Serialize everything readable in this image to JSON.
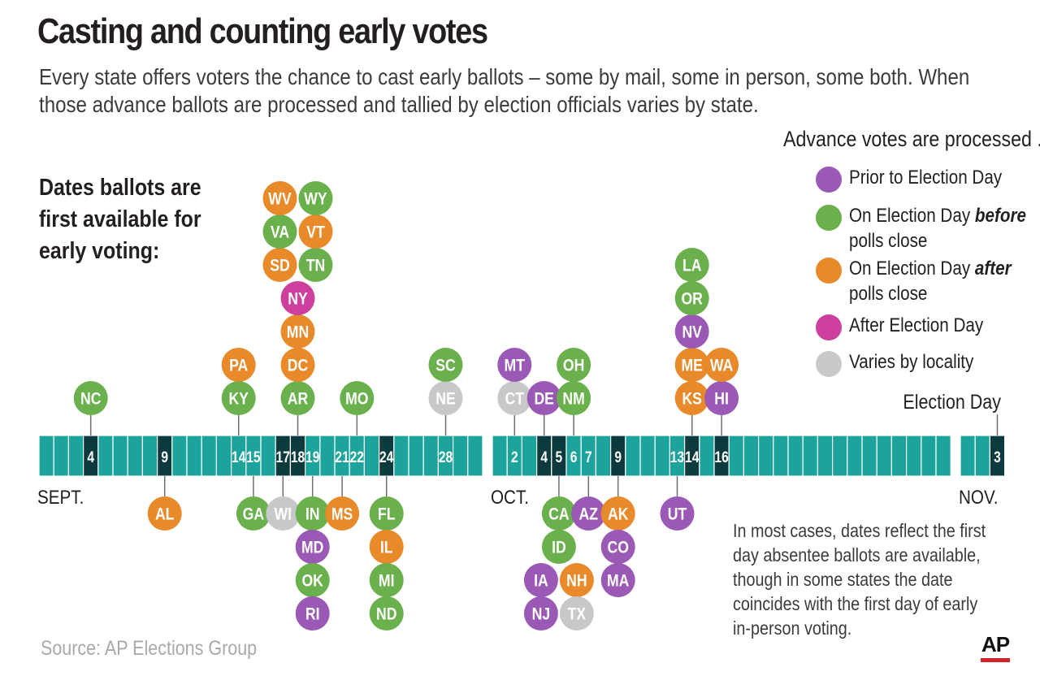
{
  "title": "Casting and counting early votes",
  "subtitle": "Every state offers voters the chance to cast early ballots – some by mail, some in person, some both. When those advance ballots are processed and tallied by election officials varies by state.",
  "left_heading": "Dates ballots are first available for early voting:",
  "legend": {
    "title": "Advance votes are processed ...",
    "items": [
      {
        "key": "prior",
        "parts": [
          {
            "t": "Prior to Election Day"
          }
        ],
        "color": "#9b59b6"
      },
      {
        "key": "before",
        "parts": [
          {
            "t": "On Election Day "
          },
          {
            "t": "before",
            "em": true
          },
          {
            "t": " polls close"
          }
        ],
        "color": "#6ab04c"
      },
      {
        "key": "after",
        "parts": [
          {
            "t": "On Election Day "
          },
          {
            "t": "after",
            "em": true
          },
          {
            "t": " polls close"
          }
        ],
        "color": "#e8892a"
      },
      {
        "key": "afterday",
        "parts": [
          {
            "t": "After Election Day"
          }
        ],
        "color": "#cc3f9c"
      },
      {
        "key": "varies",
        "parts": [
          {
            "t": "Varies by locality"
          }
        ],
        "color": "#c7c8ca"
      }
    ]
  },
  "colors": {
    "prior": "#9b59b6",
    "before": "#6ab04c",
    "after": "#e8892a",
    "afterday": "#cc3f9c",
    "varies": "#c7c8ca",
    "band": "#1ba39c",
    "band_highlight": "#0d3b3d"
  },
  "note": "In most cases, dates reflect the first day absentee ballots are available, though in some states the date coincides with the first day of early in-person voting.",
  "source": "Source: AP Elections Group",
  "credit": "AP",
  "chart_data": {
    "type": "timeline",
    "months": [
      {
        "label": "SEPT.",
        "start": "2020-09-01",
        "end": "2020-09-30"
      },
      {
        "label": "OCT.",
        "start": "2020-10-01",
        "end": "2020-10-31"
      },
      {
        "label": "NOV.",
        "start": "2020-11-01",
        "end": "2020-11-03"
      }
    ],
    "highlight_labels": [
      {
        "date": "2020-09-04",
        "label": "4"
      },
      {
        "date": "2020-09-09",
        "label": "9"
      },
      {
        "date": "2020-09-14",
        "label": "14"
      },
      {
        "date": "2020-09-15",
        "label": "15"
      },
      {
        "date": "2020-09-17",
        "label": "17"
      },
      {
        "date": "2020-09-18",
        "label": "18"
      },
      {
        "date": "2020-09-19",
        "label": "19"
      },
      {
        "date": "2020-09-21",
        "label": "21"
      },
      {
        "date": "2020-09-22",
        "label": "22"
      },
      {
        "date": "2020-09-24",
        "label": "24"
      },
      {
        "date": "2020-09-28",
        "label": "28"
      },
      {
        "date": "2020-10-02",
        "label": "2"
      },
      {
        "date": "2020-10-04",
        "label": "4"
      },
      {
        "date": "2020-10-05",
        "label": "5"
      },
      {
        "date": "2020-10-06",
        "label": "6"
      },
      {
        "date": "2020-10-07",
        "label": "7"
      },
      {
        "date": "2020-10-09",
        "label": "9"
      },
      {
        "date": "2020-10-13",
        "label": "13"
      },
      {
        "date": "2020-10-14",
        "label": "14"
      },
      {
        "date": "2020-10-16",
        "label": "16"
      },
      {
        "date": "2020-11-03",
        "label": "3"
      }
    ],
    "dark_days": [
      "2020-09-04",
      "2020-09-09",
      "2020-09-17",
      "2020-09-18",
      "2020-09-24",
      "2020-10-04",
      "2020-10-05",
      "2020-10-09",
      "2020-10-14",
      "2020-10-16",
      "2020-11-03"
    ],
    "election_day": {
      "date": "2020-11-03",
      "label": "Election Day"
    },
    "states": [
      {
        "state": "NC",
        "date": "2020-09-04",
        "side": "above",
        "stack": 0,
        "cat": "before"
      },
      {
        "state": "AL",
        "date": "2020-09-09",
        "side": "below",
        "stack": 0,
        "cat": "after"
      },
      {
        "state": "KY",
        "date": "2020-09-14",
        "side": "above",
        "stack": 0,
        "cat": "before"
      },
      {
        "state": "PA",
        "date": "2020-09-14",
        "side": "above",
        "stack": 1,
        "cat": "after"
      },
      {
        "state": "GA",
        "date": "2020-09-15",
        "side": "below",
        "stack": 0,
        "cat": "before"
      },
      {
        "state": "WI",
        "date": "2020-09-17",
        "side": "below",
        "stack": 0,
        "cat": "varies"
      },
      {
        "state": "AR",
        "date": "2020-09-18",
        "side": "above",
        "stack": 0,
        "cat": "before"
      },
      {
        "state": "DC",
        "date": "2020-09-18",
        "side": "above",
        "stack": 1,
        "cat": "after"
      },
      {
        "state": "MN",
        "date": "2020-09-18",
        "side": "above",
        "stack": 2,
        "cat": "after"
      },
      {
        "state": "NY",
        "date": "2020-09-18",
        "side": "above",
        "stack": 3,
        "cat": "afterday"
      },
      {
        "state": "SD",
        "date": "2020-09-18",
        "side": "above",
        "stack": 4,
        "cat": "after",
        "col": -1
      },
      {
        "state": "TN",
        "date": "2020-09-18",
        "side": "above",
        "stack": 4,
        "cat": "before",
        "col": 1
      },
      {
        "state": "VA",
        "date": "2020-09-18",
        "side": "above",
        "stack": 5,
        "cat": "before",
        "col": -1
      },
      {
        "state": "VT",
        "date": "2020-09-18",
        "side": "above",
        "stack": 5,
        "cat": "after",
        "col": 1
      },
      {
        "state": "WV",
        "date": "2020-09-18",
        "side": "above",
        "stack": 6,
        "cat": "after",
        "col": -1
      },
      {
        "state": "WY",
        "date": "2020-09-18",
        "side": "above",
        "stack": 6,
        "cat": "before",
        "col": 1
      },
      {
        "state": "IN",
        "date": "2020-09-19",
        "side": "below",
        "stack": 0,
        "cat": "before"
      },
      {
        "state": "MD",
        "date": "2020-09-19",
        "side": "below",
        "stack": 1,
        "cat": "prior"
      },
      {
        "state": "OK",
        "date": "2020-09-19",
        "side": "below",
        "stack": 2,
        "cat": "before"
      },
      {
        "state": "RI",
        "date": "2020-09-19",
        "side": "below",
        "stack": 3,
        "cat": "prior"
      },
      {
        "state": "MS",
        "date": "2020-09-21",
        "side": "below",
        "stack": 0,
        "cat": "after"
      },
      {
        "state": "MO",
        "date": "2020-09-22",
        "side": "above",
        "stack": 0,
        "cat": "before"
      },
      {
        "state": "FL",
        "date": "2020-09-24",
        "side": "below",
        "stack": 0,
        "cat": "before"
      },
      {
        "state": "IL",
        "date": "2020-09-24",
        "side": "below",
        "stack": 1,
        "cat": "after"
      },
      {
        "state": "MI",
        "date": "2020-09-24",
        "side": "below",
        "stack": 2,
        "cat": "before"
      },
      {
        "state": "ND",
        "date": "2020-09-24",
        "side": "below",
        "stack": 3,
        "cat": "before"
      },
      {
        "state": "NE",
        "date": "2020-09-28",
        "side": "above",
        "stack": 0,
        "cat": "varies"
      },
      {
        "state": "SC",
        "date": "2020-09-28",
        "side": "above",
        "stack": 1,
        "cat": "before"
      },
      {
        "state": "CT",
        "date": "2020-10-02",
        "side": "above",
        "stack": 0,
        "cat": "varies"
      },
      {
        "state": "MT",
        "date": "2020-10-02",
        "side": "above",
        "stack": 1,
        "cat": "prior"
      },
      {
        "state": "DE",
        "date": "2020-10-04",
        "side": "above",
        "stack": 0,
        "cat": "prior"
      },
      {
        "state": "CA",
        "date": "2020-10-05",
        "side": "below",
        "stack": 0,
        "cat": "before"
      },
      {
        "state": "ID",
        "date": "2020-10-05",
        "side": "below",
        "stack": 1,
        "cat": "before"
      },
      {
        "state": "IA",
        "date": "2020-10-05",
        "side": "below",
        "stack": 2,
        "cat": "prior",
        "col": -1
      },
      {
        "state": "NH",
        "date": "2020-10-05",
        "side": "below",
        "stack": 2,
        "cat": "after",
        "col": 1
      },
      {
        "state": "NJ",
        "date": "2020-10-05",
        "side": "below",
        "stack": 3,
        "cat": "prior",
        "col": -1
      },
      {
        "state": "TX",
        "date": "2020-10-05",
        "side": "below",
        "stack": 3,
        "cat": "varies",
        "col": 1
      },
      {
        "state": "NM",
        "date": "2020-10-06",
        "side": "above",
        "stack": 0,
        "cat": "before"
      },
      {
        "state": "OH",
        "date": "2020-10-06",
        "side": "above",
        "stack": 1,
        "cat": "before"
      },
      {
        "state": "AZ",
        "date": "2020-10-07",
        "side": "below",
        "stack": 0,
        "cat": "prior"
      },
      {
        "state": "AK",
        "date": "2020-10-09",
        "side": "below",
        "stack": 0,
        "cat": "after"
      },
      {
        "state": "CO",
        "date": "2020-10-09",
        "side": "below",
        "stack": 1,
        "cat": "prior"
      },
      {
        "state": "MA",
        "date": "2020-10-09",
        "side": "below",
        "stack": 2,
        "cat": "prior"
      },
      {
        "state": "UT",
        "date": "2020-10-13",
        "side": "below",
        "stack": 0,
        "cat": "prior"
      },
      {
        "state": "KS",
        "date": "2020-10-14",
        "side": "above",
        "stack": 0,
        "cat": "after"
      },
      {
        "state": "ME",
        "date": "2020-10-14",
        "side": "above",
        "stack": 1,
        "cat": "after"
      },
      {
        "state": "NV",
        "date": "2020-10-14",
        "side": "above",
        "stack": 2,
        "cat": "prior"
      },
      {
        "state": "OR",
        "date": "2020-10-14",
        "side": "above",
        "stack": 3,
        "cat": "before"
      },
      {
        "state": "LA",
        "date": "2020-10-14",
        "side": "above",
        "stack": 4,
        "cat": "before"
      },
      {
        "state": "HI",
        "date": "2020-10-16",
        "side": "above",
        "stack": 0,
        "cat": "prior"
      },
      {
        "state": "WA",
        "date": "2020-10-16",
        "side": "above",
        "stack": 1,
        "cat": "after"
      }
    ]
  }
}
